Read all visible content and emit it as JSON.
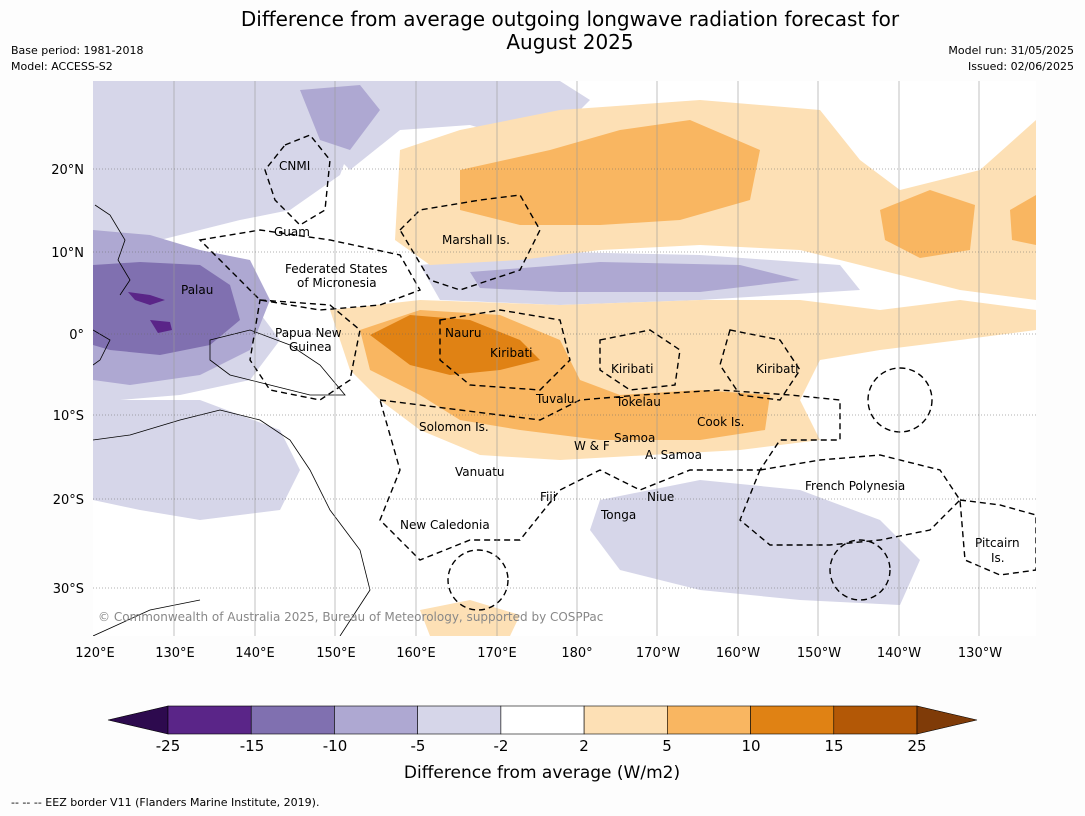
{
  "title_line1": "Difference from average outgoing longwave radiation forecast for",
  "title_line2": "August 2025",
  "base_period": "Base period: 1981-2018",
  "model": "Model: ACCESS-S2",
  "model_run": "Model run: 31/05/2025",
  "issued": "Issued: 02/06/2025",
  "copyright": "© Commonwealth of Australia 2025, Bureau of Meteorology, supported by COSPPac",
  "footer": "--  --  -- EEZ border V11 (Flanders Marine Institute, 2019).",
  "axes": {
    "lat_labels": [
      "20°N",
      "10°N",
      "0°",
      "10°S",
      "20°S",
      "30°S"
    ],
    "lon_labels": [
      "120°E",
      "130°E",
      "140°E",
      "150°E",
      "160°E",
      "170°E",
      "180°",
      "170°W",
      "160°W",
      "150°W",
      "140°W",
      "130°W"
    ]
  },
  "places": [
    {
      "name": "CNMI"
    },
    {
      "name": "Guam"
    },
    {
      "name": "Marshall Is."
    },
    {
      "name": "Federated States"
    },
    {
      "name": "of Micronesia"
    },
    {
      "name": "Palau"
    },
    {
      "name": "Papua New"
    },
    {
      "name": "Guinea"
    },
    {
      "name": "Nauru"
    },
    {
      "name": "Kiribati"
    },
    {
      "name": "Kiribati"
    },
    {
      "name": "Kiribati"
    },
    {
      "name": "Tuvalu"
    },
    {
      "name": "Tokelau"
    },
    {
      "name": "Solomon Is."
    },
    {
      "name": "Cook Is."
    },
    {
      "name": "W & F"
    },
    {
      "name": "Samoa"
    },
    {
      "name": "A. Samoa"
    },
    {
      "name": "Vanuatu"
    },
    {
      "name": "Fiji"
    },
    {
      "name": "Niue"
    },
    {
      "name": "Tonga"
    },
    {
      "name": "French Polynesia"
    },
    {
      "name": "New Caledonia"
    },
    {
      "name": "Pitcairn"
    },
    {
      "name": "Is."
    }
  ],
  "colorbar": {
    "label": "Difference from average (W/m2)",
    "ticks": [
      "-25",
      "-15",
      "-10",
      "-5",
      "-2",
      "2",
      "5",
      "10",
      "15",
      "25"
    ],
    "colors": [
      "#2d0a4e",
      "#5a2588",
      "#8070b0",
      "#aea8d2",
      "#d6d6e9",
      "#ffffff",
      "#fde0b5",
      "#f9b661",
      "#e08214",
      "#b35806",
      "#7f3b08"
    ]
  }
}
